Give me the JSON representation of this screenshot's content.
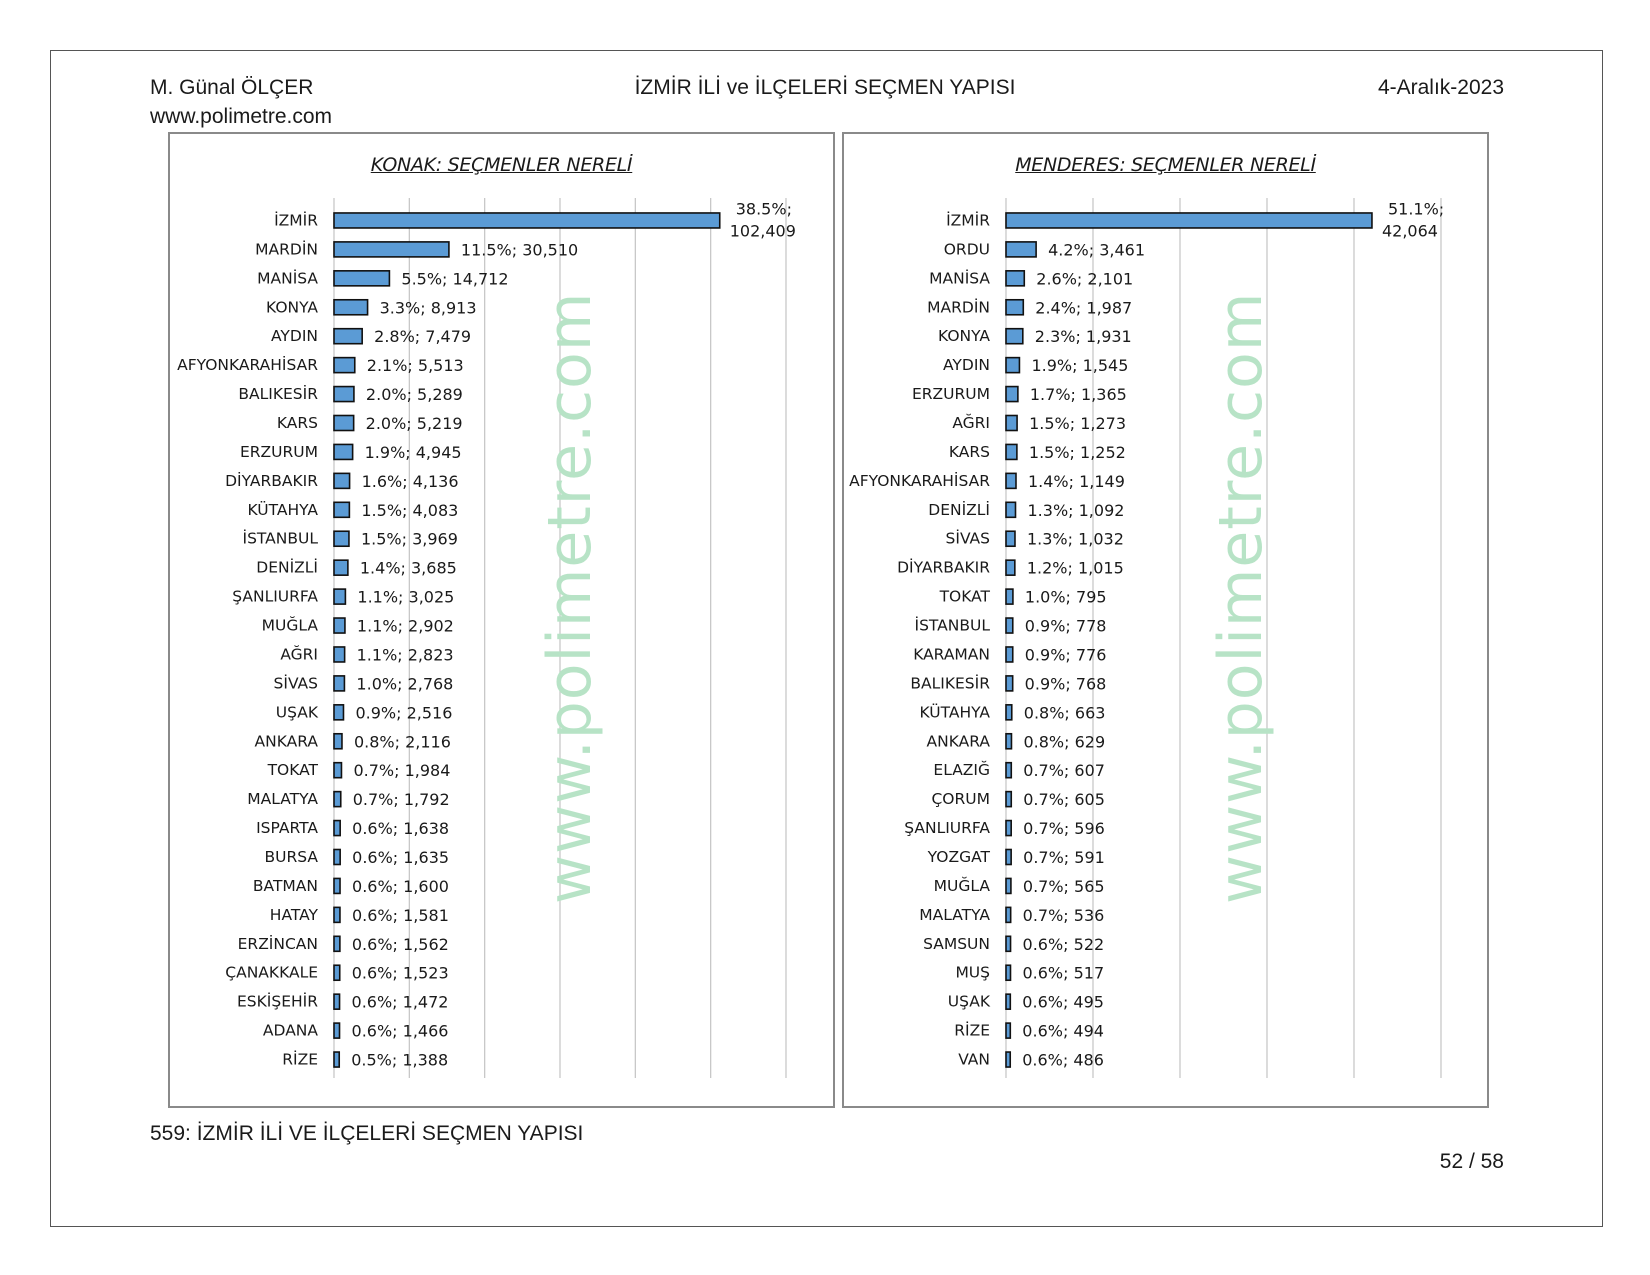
{
  "header": {
    "author": "M. Günal ÖLÇER",
    "website": "www.polimetre.com",
    "title": "İZMİR İLİ ve İLÇELERİ SEÇMEN YAPISI",
    "date": "4-Aralık-2023"
  },
  "footer": {
    "caption": "559: İZMİR İLİ VE İLÇELERİ SEÇMEN YAPISI",
    "page": "52 / 58"
  },
  "watermark": "www.polimetre.com",
  "colors": {
    "bar_fill": "#5b9bd5",
    "bar_stroke": "#111111",
    "grid": "#c8c8c8",
    "watermark": "#b7e3c6"
  },
  "chart_data": [
    {
      "type": "bar",
      "orientation": "horizontal",
      "title": "KONAK: SEÇMENLER NERELİ",
      "grid": true,
      "categories": [
        "İZMİR",
        "MARDİN",
        "MANİSA",
        "KONYA",
        "AYDIN",
        "AFYONKARAHİSAR",
        "BALIKESİR",
        "KARS",
        "ERZURUM",
        "DİYARBAKIR",
        "KÜTAHYA",
        "İSTANBUL",
        "DENİZLİ",
        "ŞANLIURFA",
        "MUĞLA",
        "AĞRI",
        "SİVAS",
        "UŞAK",
        "ANKARA",
        "TOKAT",
        "MALATYA",
        "ISPARTA",
        "BURSA",
        "BATMAN",
        "HATAY",
        "ERZİNCAN",
        "ÇANAKKALE",
        "ESKİŞEHİR",
        "ADANA",
        "RİZE"
      ],
      "values": [
        102409,
        30510,
        14712,
        8913,
        7479,
        5513,
        5289,
        5219,
        4945,
        4136,
        4083,
        3969,
        3685,
        3025,
        2902,
        2823,
        2768,
        2516,
        2116,
        1984,
        1792,
        1638,
        1635,
        1600,
        1581,
        1562,
        1523,
        1472,
        1466,
        1388
      ],
      "labels": [
        "38.5%; 102,409",
        "11.5%; 30,510",
        "5.5%; 14,712",
        "3.3%; 8,913",
        "2.8%; 7,479",
        "2.1%; 5,513",
        "2.0%; 5,289",
        "2.0%; 5,219",
        "1.9%; 4,945",
        "1.6%; 4,136",
        "1.5%; 4,083",
        "1.5%; 3,969",
        "1.4%; 3,685",
        "1.1%; 3,025",
        "1.1%; 2,902",
        "1.1%; 2,823",
        "1.0%; 2,768",
        "0.9%; 2,516",
        "0.8%; 2,116",
        "0.7%; 1,984",
        "0.7%; 1,792",
        "0.6%; 1,638",
        "0.6%; 1,635",
        "0.6%; 1,600",
        "0.6%; 1,581",
        "0.6%; 1,562",
        "0.6%; 1,523",
        "0.6%; 1,472",
        "0.6%; 1,466",
        "0.5%; 1,388"
      ],
      "xlim": [
        0,
        120000
      ]
    },
    {
      "type": "bar",
      "orientation": "horizontal",
      "title": "MENDERES: SEÇMENLER NERELİ",
      "grid": true,
      "categories": [
        "İZMİR",
        "ORDU",
        "MANİSA",
        "MARDİN",
        "KONYA",
        "AYDIN",
        "ERZURUM",
        "AĞRI",
        "KARS",
        "AFYONKARAHİSAR",
        "DENİZLİ",
        "SİVAS",
        "DİYARBAKIR",
        "TOKAT",
        "İSTANBUL",
        "KARAMAN",
        "BALIKESİR",
        "KÜTAHYA",
        "ANKARA",
        "ELAZIĞ",
        "ÇORUM",
        "ŞANLIURFA",
        "YOZGAT",
        "MUĞLA",
        "MALATYA",
        "SAMSUN",
        "MUŞ",
        "UŞAK",
        "RİZE",
        "VAN"
      ],
      "values": [
        42064,
        3461,
        2101,
        1987,
        1931,
        1545,
        1365,
        1273,
        1252,
        1149,
        1092,
        1032,
        1015,
        795,
        778,
        776,
        768,
        663,
        629,
        607,
        605,
        596,
        591,
        565,
        536,
        522,
        517,
        495,
        494,
        486
      ],
      "labels": [
        "51.1%; 42,064",
        "4.2%; 3,461",
        "2.6%; 2,101",
        "2.4%; 1,987",
        "2.3%; 1,931",
        "1.9%; 1,545",
        "1.7%; 1,365",
        "1.5%; 1,273",
        "1.5%; 1,252",
        "1.4%; 1,149",
        "1.3%; 1,092",
        "1.3%; 1,032",
        "1.2%; 1,015",
        "1.0%; 795",
        "0.9%; 778",
        "0.9%; 776",
        "0.9%; 768",
        "0.8%; 663",
        "0.8%; 629",
        "0.7%; 607",
        "0.7%; 605",
        "0.7%; 596",
        "0.7%; 591",
        "0.7%; 565",
        "0.7%; 536",
        "0.6%; 522",
        "0.6%; 517",
        "0.6%; 495",
        "0.6%; 494",
        "0.6%; 486"
      ],
      "xlim": [
        0,
        50000
      ]
    }
  ]
}
